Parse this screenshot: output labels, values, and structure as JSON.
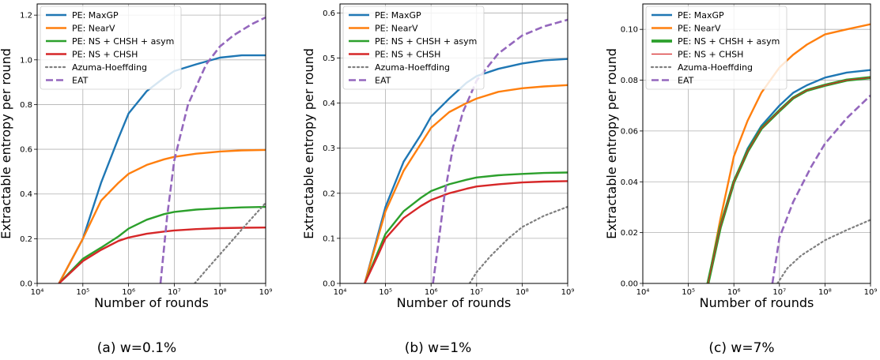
{
  "chart_data": [
    {
      "type": "line",
      "caption": "(a) w=0.1%",
      "xlabel": "Number of rounds",
      "ylabel": "Extractable entropy per round",
      "x_scale": "log",
      "xlim": [
        10000,
        1000000000
      ],
      "ylim": [
        0,
        1.25
      ],
      "xticks": [
        10000,
        100000,
        1000000,
        10000000,
        100000000,
        1000000000
      ],
      "xtick_labels": [
        "10⁴",
        "10⁵",
        "10⁶",
        "10⁷",
        "10⁸",
        "10⁹"
      ],
      "yticks": [
        "0.0",
        "0.2",
        "0.4",
        "0.6",
        "0.8",
        "1.0",
        "1.2"
      ],
      "grid": true,
      "legend_position": "top-left",
      "series": [
        {
          "name": "PE: MaxGP",
          "color": "#1f77b4",
          "style": "solid",
          "width": 2.4,
          "x": [
            30000,
            100000,
            250000,
            600000,
            1000000,
            2500000,
            6000000,
            10000000,
            30000000,
            100000000,
            300000000,
            1000000000
          ],
          "y": [
            0,
            0.2,
            0.45,
            0.65,
            0.76,
            0.86,
            0.92,
            0.95,
            0.98,
            1.01,
            1.02,
            1.02
          ]
        },
        {
          "name": "PE: NearV",
          "color": "#ff7f0e",
          "style": "solid",
          "width": 2.4,
          "x": [
            30000,
            100000,
            250000,
            600000,
            1000000,
            2500000,
            6000000,
            10000000,
            30000000,
            100000000,
            300000000,
            1000000000
          ],
          "y": [
            0,
            0.2,
            0.37,
            0.45,
            0.49,
            0.53,
            0.555,
            0.566,
            0.58,
            0.59,
            0.595,
            0.597
          ]
        },
        {
          "name": "PE: NS + CHSH + asym",
          "color": "#2ca02c",
          "style": "solid",
          "width": 2.4,
          "x": [
            30000,
            100000,
            250000,
            600000,
            1000000,
            2500000,
            6000000,
            10000000,
            30000000,
            100000000,
            300000000,
            1000000000
          ],
          "y": [
            0,
            0.11,
            0.16,
            0.21,
            0.245,
            0.285,
            0.31,
            0.32,
            0.33,
            0.336,
            0.34,
            0.342
          ]
        },
        {
          "name": "PE: NS + CHSH",
          "color": "#d62728",
          "style": "solid",
          "width": 2.4,
          "x": [
            30000,
            100000,
            250000,
            600000,
            1000000,
            2500000,
            6000000,
            10000000,
            30000000,
            100000000,
            300000000,
            1000000000
          ],
          "y": [
            0,
            0.1,
            0.15,
            0.19,
            0.205,
            0.222,
            0.232,
            0.237,
            0.243,
            0.247,
            0.249,
            0.25
          ]
        },
        {
          "name": "Azuma-Hoeffding",
          "color": "#7f7f7f",
          "style": "dotted",
          "width": 2.2,
          "x": [
            28000000,
            50000000,
            100000000,
            200000000,
            400000000,
            1000000000
          ],
          "y": [
            0,
            0.06,
            0.13,
            0.2,
            0.27,
            0.36
          ]
        },
        {
          "name": "EAT",
          "color": "#9467bd",
          "style": "dashed",
          "width": 2.6,
          "x": [
            5000000,
            7000000,
            10000000,
            20000000,
            50000000,
            100000000,
            200000000,
            500000000,
            1000000000
          ],
          "y": [
            0,
            0.3,
            0.55,
            0.8,
            0.98,
            1.06,
            1.11,
            1.16,
            1.19
          ]
        }
      ]
    },
    {
      "type": "line",
      "caption": "(b) w=1%",
      "xlabel": "Number of rounds",
      "ylabel": "Extractable entropy per round",
      "x_scale": "log",
      "xlim": [
        10000,
        1000000000
      ],
      "ylim": [
        0,
        0.62
      ],
      "xticks": [
        10000,
        100000,
        1000000,
        10000000,
        100000000,
        1000000000
      ],
      "xtick_labels": [
        "10⁴",
        "10⁵",
        "10⁶",
        "10⁷",
        "10⁸",
        "10⁹"
      ],
      "yticks": [
        "0.0",
        "0.1",
        "0.2",
        "0.3",
        "0.4",
        "0.5",
        "0.6"
      ],
      "grid": true,
      "legend_position": "top-left",
      "series": [
        {
          "name": "PE: MaxGP",
          "color": "#1f77b4",
          "style": "solid",
          "width": 2.4,
          "x": [
            35000,
            100000,
            250000,
            600000,
            1000000,
            2500000,
            6000000,
            10000000,
            30000000,
            100000000,
            300000000,
            1000000000
          ],
          "y": [
            0,
            0.17,
            0.27,
            0.33,
            0.37,
            0.41,
            0.445,
            0.46,
            0.476,
            0.488,
            0.495,
            0.498
          ]
        },
        {
          "name": "PE: NearV",
          "color": "#ff7f0e",
          "style": "solid",
          "width": 2.4,
          "x": [
            35000,
            100000,
            250000,
            600000,
            1000000,
            2500000,
            6000000,
            10000000,
            30000000,
            100000000,
            300000000,
            1000000000
          ],
          "y": [
            0,
            0.16,
            0.25,
            0.31,
            0.345,
            0.38,
            0.4,
            0.41,
            0.425,
            0.433,
            0.437,
            0.44
          ]
        },
        {
          "name": "PE: NS + CHSH + asym",
          "color": "#2ca02c",
          "style": "solid",
          "width": 2.4,
          "x": [
            35000,
            100000,
            250000,
            600000,
            1000000,
            2500000,
            6000000,
            10000000,
            30000000,
            100000000,
            300000000,
            1000000000
          ],
          "y": [
            0,
            0.11,
            0.16,
            0.19,
            0.205,
            0.22,
            0.23,
            0.235,
            0.24,
            0.243,
            0.245,
            0.246
          ]
        },
        {
          "name": "PE: NS + CHSH",
          "color": "#d62728",
          "style": "solid",
          "width": 2.4,
          "x": [
            35000,
            70000,
            100000,
            250000,
            600000,
            1000000,
            2500000,
            6000000,
            10000000,
            30000000,
            100000000,
            300000000,
            1000000000
          ],
          "y": [
            0,
            0.065,
            0.1,
            0.145,
            0.172,
            0.185,
            0.2,
            0.21,
            0.215,
            0.22,
            0.224,
            0.226,
            0.227
          ]
        },
        {
          "name": "Azuma-Hoeffding",
          "color": "#7f7f7f",
          "style": "dotted",
          "width": 2.2,
          "x": [
            7000000,
            10000000,
            20000000,
            50000000,
            100000000,
            300000000,
            1000000000
          ],
          "y": [
            0,
            0.025,
            0.06,
            0.1,
            0.125,
            0.15,
            0.17
          ]
        },
        {
          "name": "EAT",
          "color": "#9467bd",
          "style": "dashed",
          "width": 2.6,
          "x": [
            1100000,
            1500000,
            2000000,
            3000000,
            5000000,
            10000000,
            30000000,
            100000000,
            300000000,
            1000000000
          ],
          "y": [
            0,
            0.1,
            0.2,
            0.3,
            0.38,
            0.45,
            0.51,
            0.55,
            0.57,
            0.585
          ]
        }
      ]
    },
    {
      "type": "line",
      "caption": "(c) w=7%",
      "xlabel": "Number of rounds",
      "ylabel": "Extractable entropy per round",
      "x_scale": "log",
      "xlim": [
        10000,
        1000000000
      ],
      "ylim": [
        0,
        0.11
      ],
      "xticks": [
        10000,
        100000,
        1000000,
        10000000,
        100000000,
        1000000000
      ],
      "xtick_labels": [
        "10⁴",
        "10⁵",
        "10⁶",
        "10⁷",
        "10⁸",
        "10⁹"
      ],
      "yticks": [
        "0.00",
        "0.02",
        "0.04",
        "0.06",
        "0.08",
        "0.10"
      ],
      "grid": true,
      "legend_position": "top-left",
      "series": [
        {
          "name": "PE: MaxGP",
          "color": "#1f77b4",
          "style": "solid",
          "width": 2.4,
          "x": [
            270000,
            500000,
            1000000,
            2000000,
            4000000,
            10000000,
            20000000,
            40000000,
            100000000,
            300000000,
            1000000000
          ],
          "y": [
            0,
            0.022,
            0.04,
            0.053,
            0.062,
            0.07,
            0.075,
            0.078,
            0.081,
            0.083,
            0.084
          ]
        },
        {
          "name": "PE: NearV",
          "color": "#ff7f0e",
          "style": "solid",
          "width": 2.4,
          "x": [
            270000,
            500000,
            1000000,
            2000000,
            4000000,
            10000000,
            20000000,
            40000000,
            100000000,
            300000000,
            1000000000
          ],
          "y": [
            0,
            0.025,
            0.05,
            0.064,
            0.075,
            0.085,
            0.09,
            0.094,
            0.098,
            0.1,
            0.102
          ]
        },
        {
          "name": "PE: NS + CHSH + asym",
          "color": "#2ca02c",
          "style": "solid",
          "width": 3.8,
          "x": [
            270000,
            500000,
            1000000,
            2000000,
            4000000,
            10000000,
            20000000,
            40000000,
            100000000,
            300000000,
            1000000000
          ],
          "y": [
            0,
            0.022,
            0.04,
            0.052,
            0.061,
            0.068,
            0.073,
            0.076,
            0.078,
            0.08,
            0.081
          ]
        },
        {
          "name": "PE: NS + CHSH",
          "color": "#d62728",
          "style": "solid",
          "width": 1.2,
          "x": [
            270000,
            500000,
            1000000,
            2000000,
            4000000,
            10000000,
            20000000,
            40000000,
            100000000,
            300000000,
            1000000000
          ],
          "y": [
            0,
            0.022,
            0.04,
            0.052,
            0.061,
            0.068,
            0.073,
            0.076,
            0.078,
            0.08,
            0.081
          ]
        },
        {
          "name": "Azuma-Hoeffding",
          "color": "#7f7f7f",
          "style": "dotted",
          "width": 2.2,
          "x": [
            9000000,
            15000000,
            30000000,
            100000000,
            300000000,
            1000000000
          ],
          "y": [
            0,
            0.006,
            0.011,
            0.017,
            0.021,
            0.025
          ]
        },
        {
          "name": "EAT",
          "color": "#9467bd",
          "style": "dashed",
          "width": 2.6,
          "x": [
            7000000,
            10000000,
            20000000,
            50000000,
            100000000,
            300000000,
            1000000000
          ],
          "y": [
            0,
            0.018,
            0.032,
            0.046,
            0.055,
            0.065,
            0.074
          ]
        }
      ]
    }
  ]
}
